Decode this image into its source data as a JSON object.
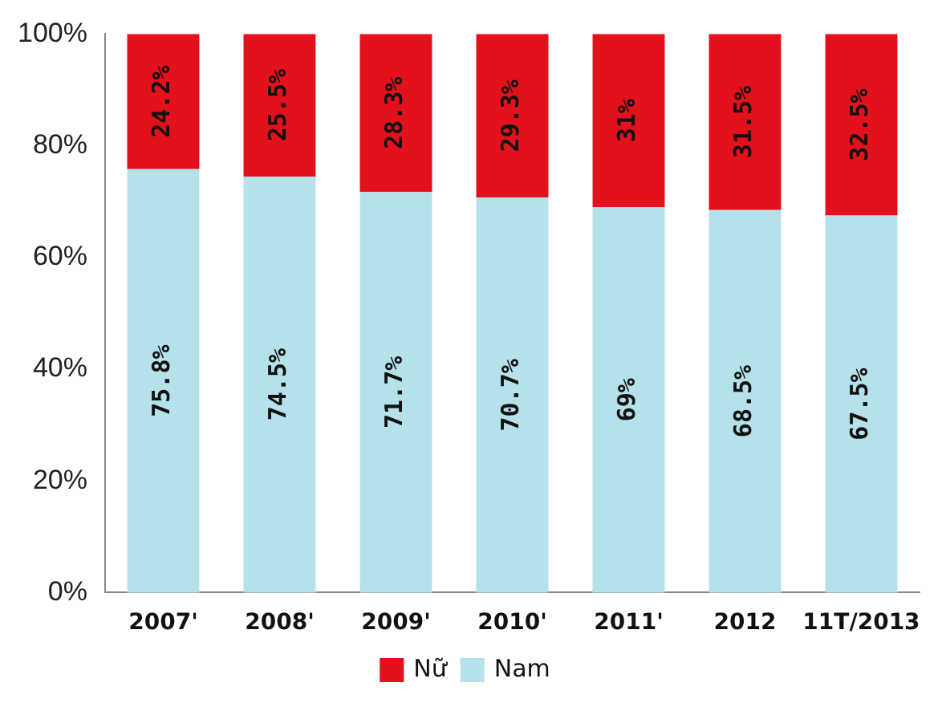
{
  "chart_data": {
    "type": "bar",
    "stacked": true,
    "categories": [
      "2007'",
      "2008'",
      "2009'",
      "2010'",
      "2011'",
      "2012",
      "11T/2013"
    ],
    "series": [
      {
        "name": "Nam",
        "color": "#b4e1ea",
        "values": [
          75.8,
          74.5,
          71.7,
          70.7,
          69,
          68.5,
          67.5
        ],
        "value_labels": [
          "75.8%",
          "74.5%",
          "71.7%",
          "70.7%",
          "69%",
          "68.5%",
          "67.5%"
        ]
      },
      {
        "name": "Nữ",
        "color": "#e3111b",
        "values": [
          24.2,
          25.5,
          28.3,
          29.3,
          31,
          31.5,
          32.5
        ],
        "value_labels": [
          "24.2%",
          "25.5%",
          "28.3%",
          "29.3%",
          "31%",
          "31.5%",
          "32.5%"
        ]
      }
    ],
    "ylim": [
      0,
      100
    ],
    "yticks": [
      {
        "value": 0,
        "label": "0%"
      },
      {
        "value": 20,
        "label": "20%"
      },
      {
        "value": 40,
        "label": "40%"
      },
      {
        "value": 60,
        "label": "60%"
      },
      {
        "value": 80,
        "label": "80%"
      },
      {
        "value": 100,
        "label": "100%"
      }
    ],
    "grid": false,
    "legend": "bottom"
  }
}
